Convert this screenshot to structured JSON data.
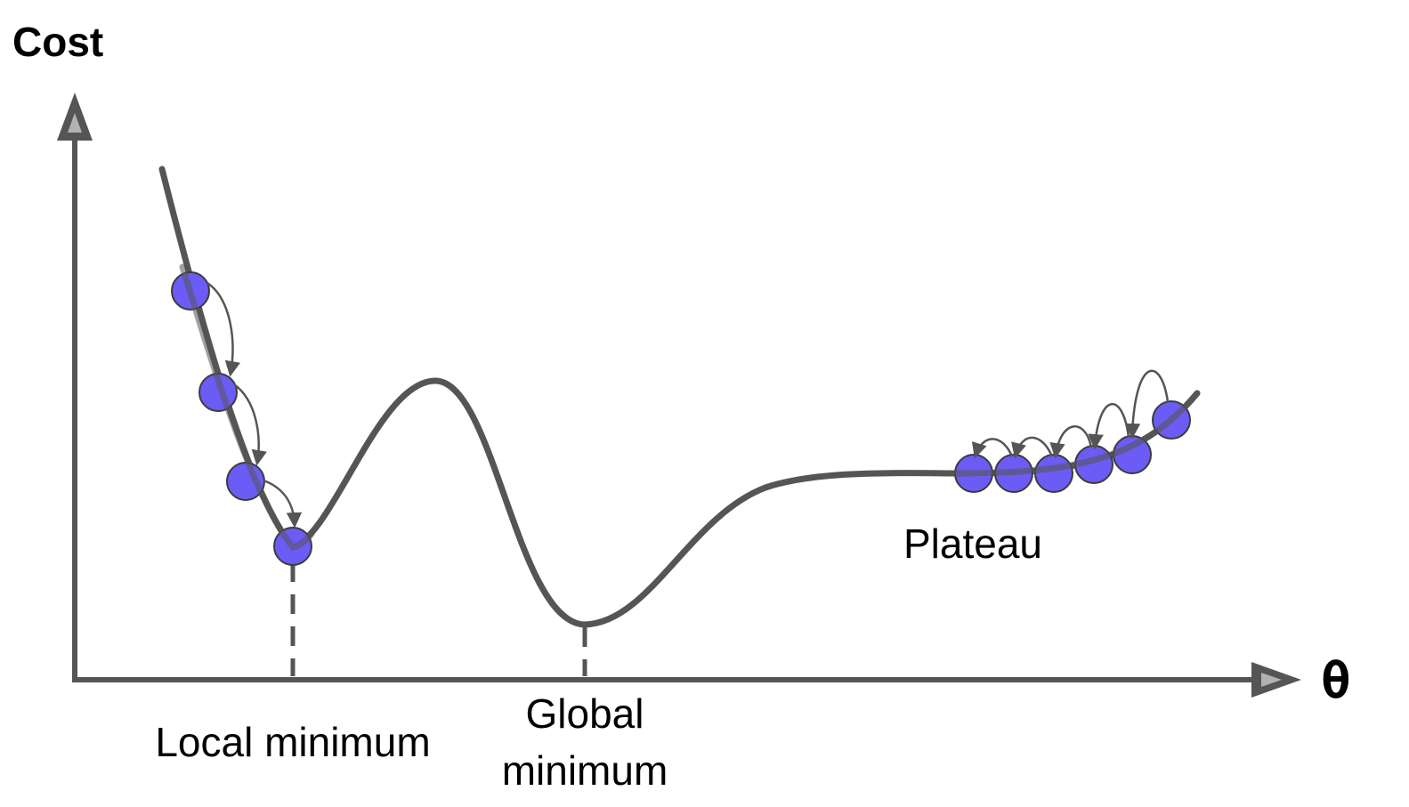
{
  "diagram": {
    "y_axis_label": "Cost",
    "x_axis_label": "θ",
    "annotations": {
      "local_minimum": "Local minimum",
      "global_minimum_line1": "Global",
      "global_minimum_line2": "minimum",
      "plateau": "Plateau"
    },
    "colors": {
      "curve": "#555555",
      "axis": "#555555",
      "ball_fill": "#6b5cf5",
      "ball_stroke": "#3c3c3c",
      "step_arrow": "#555555"
    },
    "left_descent_steps": 4,
    "plateau_steps": 6
  }
}
